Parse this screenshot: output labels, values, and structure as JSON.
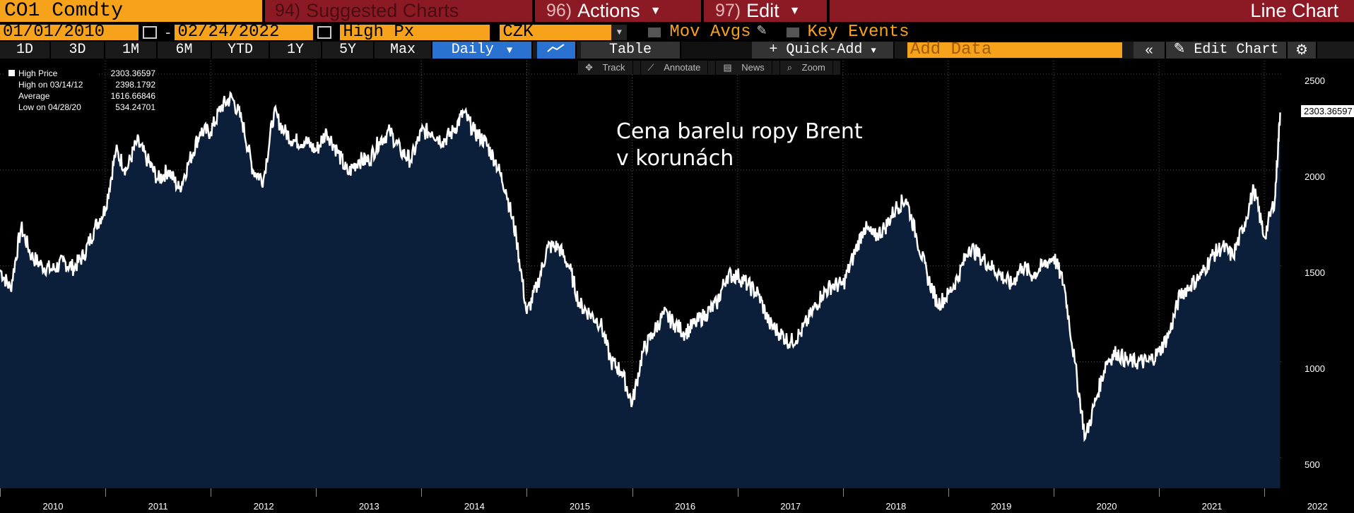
{
  "header": {
    "ticker": "CO1 Comdty",
    "suggested": {
      "num": "94)",
      "label": "Suggested Charts"
    },
    "actions": {
      "num": "96)",
      "label": "Actions"
    },
    "edit": {
      "num": "97)",
      "label": "Edit"
    },
    "chart_type": "Line Chart"
  },
  "controls": {
    "start_date": "01/01/2010",
    "end_date": "02/24/2022",
    "field": "High Px",
    "currency": "CZK",
    "mov_avgs": "Mov Avgs",
    "key_events": "Key Events"
  },
  "periods": [
    "1D",
    "3D",
    "1M",
    "6M",
    "YTD",
    "1Y",
    "5Y",
    "Max"
  ],
  "frequency": "Daily",
  "table_label": "Table",
  "quick_add": "Quick-Add",
  "add_data_placeholder": "Add Data",
  "edit_chart": "Edit Chart",
  "tools": [
    "Track",
    "Annotate",
    "News",
    "Zoom"
  ],
  "legend": [
    {
      "label": "High Price",
      "value": "2303.36597"
    },
    {
      "label": "High on 03/14/12",
      "value": "2398.1792"
    },
    {
      "label": "Average",
      "value": "1616.66846"
    },
    {
      "label": "Low on 04/28/20",
      "value": "534.24701"
    }
  ],
  "annotation": {
    "line1": "Cena barelu ropy Brent",
    "line2": "v korunách"
  },
  "last_price_tag": "2303.36597",
  "colors": {
    "orange": "#f7a21b",
    "maroon": "#8c1a24",
    "fill": "#0b1f3a",
    "line": "#ffffff",
    "blue": "#2a72cf"
  },
  "chart_data": {
    "type": "area",
    "x_ticks": [
      "2010",
      "2011",
      "2012",
      "2013",
      "2014",
      "2015",
      "2016",
      "2017",
      "2018",
      "2019",
      "2020",
      "2021",
      "2022"
    ],
    "y_ticks": [
      500,
      1000,
      1500,
      2000,
      2500
    ],
    "ylim": [
      340,
      2570
    ],
    "x": [
      2010.0,
      2010.1,
      2010.2,
      2010.3,
      2010.4,
      2010.5,
      2010.6,
      2010.7,
      2010.8,
      2010.9,
      2011.0,
      2011.1,
      2011.2,
      2011.3,
      2011.4,
      2011.5,
      2011.6,
      2011.7,
      2011.8,
      2011.9,
      2012.0,
      2012.1,
      2012.2,
      2012.3,
      2012.4,
      2012.5,
      2012.6,
      2012.7,
      2012.8,
      2012.9,
      2013.0,
      2013.1,
      2013.2,
      2013.3,
      2013.4,
      2013.5,
      2013.6,
      2013.7,
      2013.8,
      2013.9,
      2014.0,
      2014.1,
      2014.2,
      2014.3,
      2014.4,
      2014.5,
      2014.6,
      2014.7,
      2014.8,
      2014.9,
      2015.0,
      2015.1,
      2015.2,
      2015.3,
      2015.4,
      2015.5,
      2015.6,
      2015.7,
      2015.8,
      2015.9,
      2016.0,
      2016.1,
      2016.2,
      2016.3,
      2016.4,
      2016.5,
      2016.6,
      2016.7,
      2016.8,
      2016.9,
      2017.0,
      2017.1,
      2017.2,
      2017.3,
      2017.4,
      2017.5,
      2017.6,
      2017.7,
      2017.8,
      2017.9,
      2018.0,
      2018.1,
      2018.2,
      2018.3,
      2018.4,
      2018.5,
      2018.6,
      2018.7,
      2018.8,
      2018.9,
      2019.0,
      2019.1,
      2019.2,
      2019.3,
      2019.4,
      2019.5,
      2019.6,
      2019.7,
      2019.8,
      2019.9,
      2020.0,
      2020.1,
      2020.2,
      2020.3,
      2020.4,
      2020.5,
      2020.6,
      2020.7,
      2020.8,
      2020.9,
      2021.0,
      2021.1,
      2021.2,
      2021.3,
      2021.4,
      2021.5,
      2021.6,
      2021.7,
      2021.8,
      2021.9,
      2022.0,
      2022.1,
      2022.15
    ],
    "y": [
      1480,
      1380,
      1700,
      1550,
      1500,
      1480,
      1520,
      1490,
      1560,
      1700,
      1800,
      2100,
      2000,
      2150,
      2050,
      1950,
      2000,
      1900,
      2050,
      2200,
      2200,
      2330,
      2380,
      2250,
      2000,
      1950,
      2300,
      2200,
      2150,
      2150,
      2100,
      2200,
      2100,
      1980,
      2050,
      2050,
      2150,
      2200,
      2100,
      2050,
      2200,
      2200,
      2150,
      2200,
      2300,
      2200,
      2150,
      2050,
      1900,
      1650,
      1250,
      1400,
      1600,
      1600,
      1500,
      1300,
      1250,
      1200,
      1000,
      950,
      780,
      1050,
      1150,
      1250,
      1200,
      1150,
      1200,
      1250,
      1300,
      1450,
      1450,
      1400,
      1350,
      1200,
      1150,
      1100,
      1150,
      1250,
      1350,
      1400,
      1400,
      1550,
      1700,
      1650,
      1700,
      1800,
      1850,
      1650,
      1450,
      1300,
      1350,
      1450,
      1600,
      1550,
      1500,
      1450,
      1400,
      1500,
      1450,
      1500,
      1550,
      1400,
      1000,
      600,
      800,
      1000,
      1050,
      1000,
      1000,
      1000,
      1050,
      1150,
      1350,
      1400,
      1450,
      1550,
      1600,
      1550,
      1700,
      1900,
      1650,
      1850,
      2300
    ]
  }
}
